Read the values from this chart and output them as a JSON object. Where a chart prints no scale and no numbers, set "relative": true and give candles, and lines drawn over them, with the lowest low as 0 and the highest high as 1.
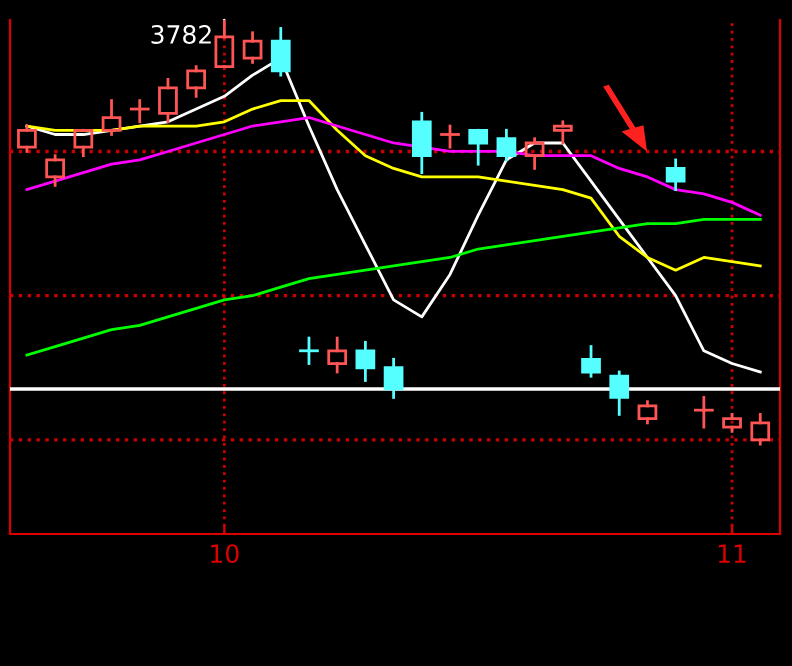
{
  "chart_data": {
    "type": "candlestick",
    "relative": true,
    "legend": false,
    "categories": [
      null,
      null,
      null,
      null,
      null,
      null,
      null,
      "10",
      null,
      null,
      null,
      null,
      null,
      null,
      null,
      null,
      null,
      null,
      null,
      null,
      null,
      null,
      null,
      null,
      null,
      "11",
      null
    ],
    "colors": [
      "#ff5555",
      "#ff5555",
      "#ff5555",
      "#ff5555",
      "#ff5555",
      "#ff5555",
      "#ff5555",
      "#ff5555",
      "#ff5555",
      "#55ffff",
      "#55ffff",
      "#ff5555",
      "#55ffff",
      "#55ffff",
      "#55ffff",
      "#ff5555",
      "#55ffff",
      "#55ffff",
      "#ff5555",
      "#ff5555",
      "#55ffff",
      "#55ffff",
      "#ff5555",
      "#55ffff",
      "#ff5555",
      "#ff5555",
      "#ff5555"
    ],
    "ohlc": [
      [
        0.7,
        0.75,
        0.69,
        0.74
      ],
      [
        0.63,
        0.68,
        0.61,
        0.67
      ],
      [
        0.7,
        0.74,
        0.68,
        0.74
      ],
      [
        0.74,
        0.81,
        0.73,
        0.77
      ],
      [
        0.79,
        0.81,
        0.76,
        0.79
      ],
      [
        0.78,
        0.86,
        0.76,
        0.84
      ],
      [
        0.84,
        0.89,
        0.82,
        0.88
      ],
      [
        0.89,
        1.0,
        0.89,
        0.96
      ],
      [
        0.91,
        0.97,
        0.9,
        0.95
      ],
      [
        0.95,
        0.98,
        0.87,
        0.88
      ],
      [
        0.22,
        0.25,
        0.19,
        0.22
      ],
      [
        0.19,
        0.25,
        0.17,
        0.22
      ],
      [
        0.22,
        0.24,
        0.15,
        0.18
      ],
      [
        0.18,
        0.2,
        0.11,
        0.13
      ],
      [
        0.76,
        0.78,
        0.64,
        0.68
      ],
      [
        0.73,
        0.75,
        0.7,
        0.73
      ],
      [
        0.74,
        0.74,
        0.66,
        0.71
      ],
      [
        0.72,
        0.74,
        0.67,
        0.68
      ],
      [
        0.68,
        0.72,
        0.65,
        0.71
      ],
      [
        0.74,
        0.76,
        0.71,
        0.75
      ],
      [
        0.2,
        0.23,
        0.16,
        0.17
      ],
      [
        0.16,
        0.17,
        0.07,
        0.11
      ],
      [
        0.06,
        0.1,
        0.05,
        0.09
      ],
      [
        0.65,
        0.67,
        0.6,
        0.62
      ],
      [
        0.08,
        0.11,
        0.04,
        0.08
      ],
      [
        0.04,
        0.07,
        0.03,
        0.06
      ],
      [
        0.01,
        0.07,
        0.0,
        0.05
      ]
    ],
    "series": [
      {
        "type": "line",
        "color": "#ffffff",
        "values": [
          0.75,
          0.73,
          0.73,
          0.74,
          0.75,
          0.76,
          0.79,
          0.82,
          0.87,
          0.91,
          0.75,
          0.6,
          0.47,
          0.34,
          0.3,
          0.4,
          0.54,
          0.67,
          0.71,
          0.71,
          0.62,
          0.53,
          0.44,
          0.35,
          0.22,
          0.19,
          0.17
        ]
      },
      {
        "type": "line",
        "color": "#ffff00",
        "values": [
          0.75,
          0.74,
          0.74,
          0.74,
          0.75,
          0.75,
          0.75,
          0.76,
          0.79,
          0.81,
          0.81,
          0.74,
          0.68,
          0.65,
          0.63,
          0.63,
          0.63,
          0.62,
          0.61,
          0.6,
          0.58,
          0.49,
          0.44,
          0.41,
          0.44,
          0.43,
          0.42
        ]
      },
      {
        "type": "line",
        "color": "#ff00ff",
        "values": [
          0.6,
          0.62,
          0.64,
          0.66,
          0.67,
          0.69,
          0.71,
          0.73,
          0.75,
          0.76,
          0.77,
          0.75,
          0.73,
          0.71,
          null,
          0.69,
          0.69,
          0.69,
          0.68,
          0.68,
          0.68,
          0.65,
          0.63,
          0.6,
          0.59,
          0.57,
          0.54
        ]
      },
      {
        "type": "line",
        "color": "#00ff00",
        "values": [
          0.21,
          0.23,
          0.25,
          0.27,
          0.28,
          0.3,
          0.32,
          0.34,
          0.35,
          0.37,
          0.39,
          0.4,
          0.41,
          0.42,
          0.43,
          0.44,
          0.46,
          0.47,
          0.48,
          0.49,
          0.5,
          0.51,
          0.52,
          0.52,
          0.53,
          0.53,
          0.53
        ]
      }
    ],
    "ref_lines": [
      {
        "axis": "y",
        "value": 0.69,
        "color": "#cc0000",
        "line_style": "dotted"
      },
      {
        "axis": "y",
        "value": 0.35,
        "color": "#cc0000",
        "line_style": "dotted"
      },
      {
        "axis": "y",
        "value": 0.01,
        "color": "#cc0000",
        "line_style": "dotted"
      },
      {
        "axis": "y",
        "value": 0.13,
        "color": "#ffffff",
        "line_style": "solid"
      },
      {
        "axis": "x",
        "value": "10",
        "color": "#cc0000",
        "line_style": "dotted"
      },
      {
        "axis": "x",
        "value": "11",
        "color": "#cc0000",
        "line_style": "dotted"
      }
    ],
    "annotations": [
      {
        "text": "3782",
        "x": "10",
        "y": 1.0
      }
    ]
  }
}
